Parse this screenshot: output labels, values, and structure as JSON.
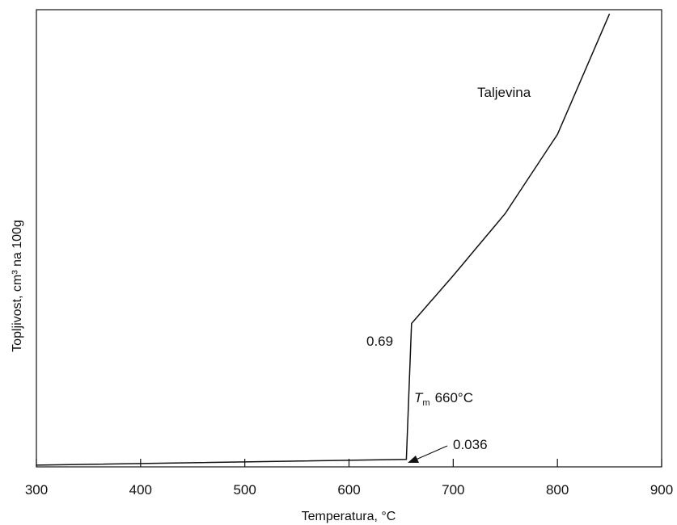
{
  "chart_data": {
    "type": "line",
    "xlabel": "Temperatura, °C",
    "ylabel": "Topljivost, cm³ na 100g",
    "xlim": [
      300,
      900
    ],
    "x_ticks": [
      "300",
      "400",
      "500",
      "600",
      "700",
      "800",
      "900"
    ],
    "y_ticks": [],
    "grid": false,
    "series": [
      {
        "x": [
          300,
          655,
          660,
          700,
          750,
          800,
          850
        ],
        "y": [
          0.008,
          0.036,
          0.69,
          0.92,
          1.22,
          1.6,
          2.18
        ]
      }
    ],
    "annotations": {
      "region": "Taljevina",
      "melting_symbol": "T",
      "melting_subscript": "m",
      "melting_value": "660°C",
      "value_high": "0.69",
      "value_low": "0.036"
    },
    "colors": {
      "line": "#111111",
      "background": "#ffffff"
    }
  }
}
